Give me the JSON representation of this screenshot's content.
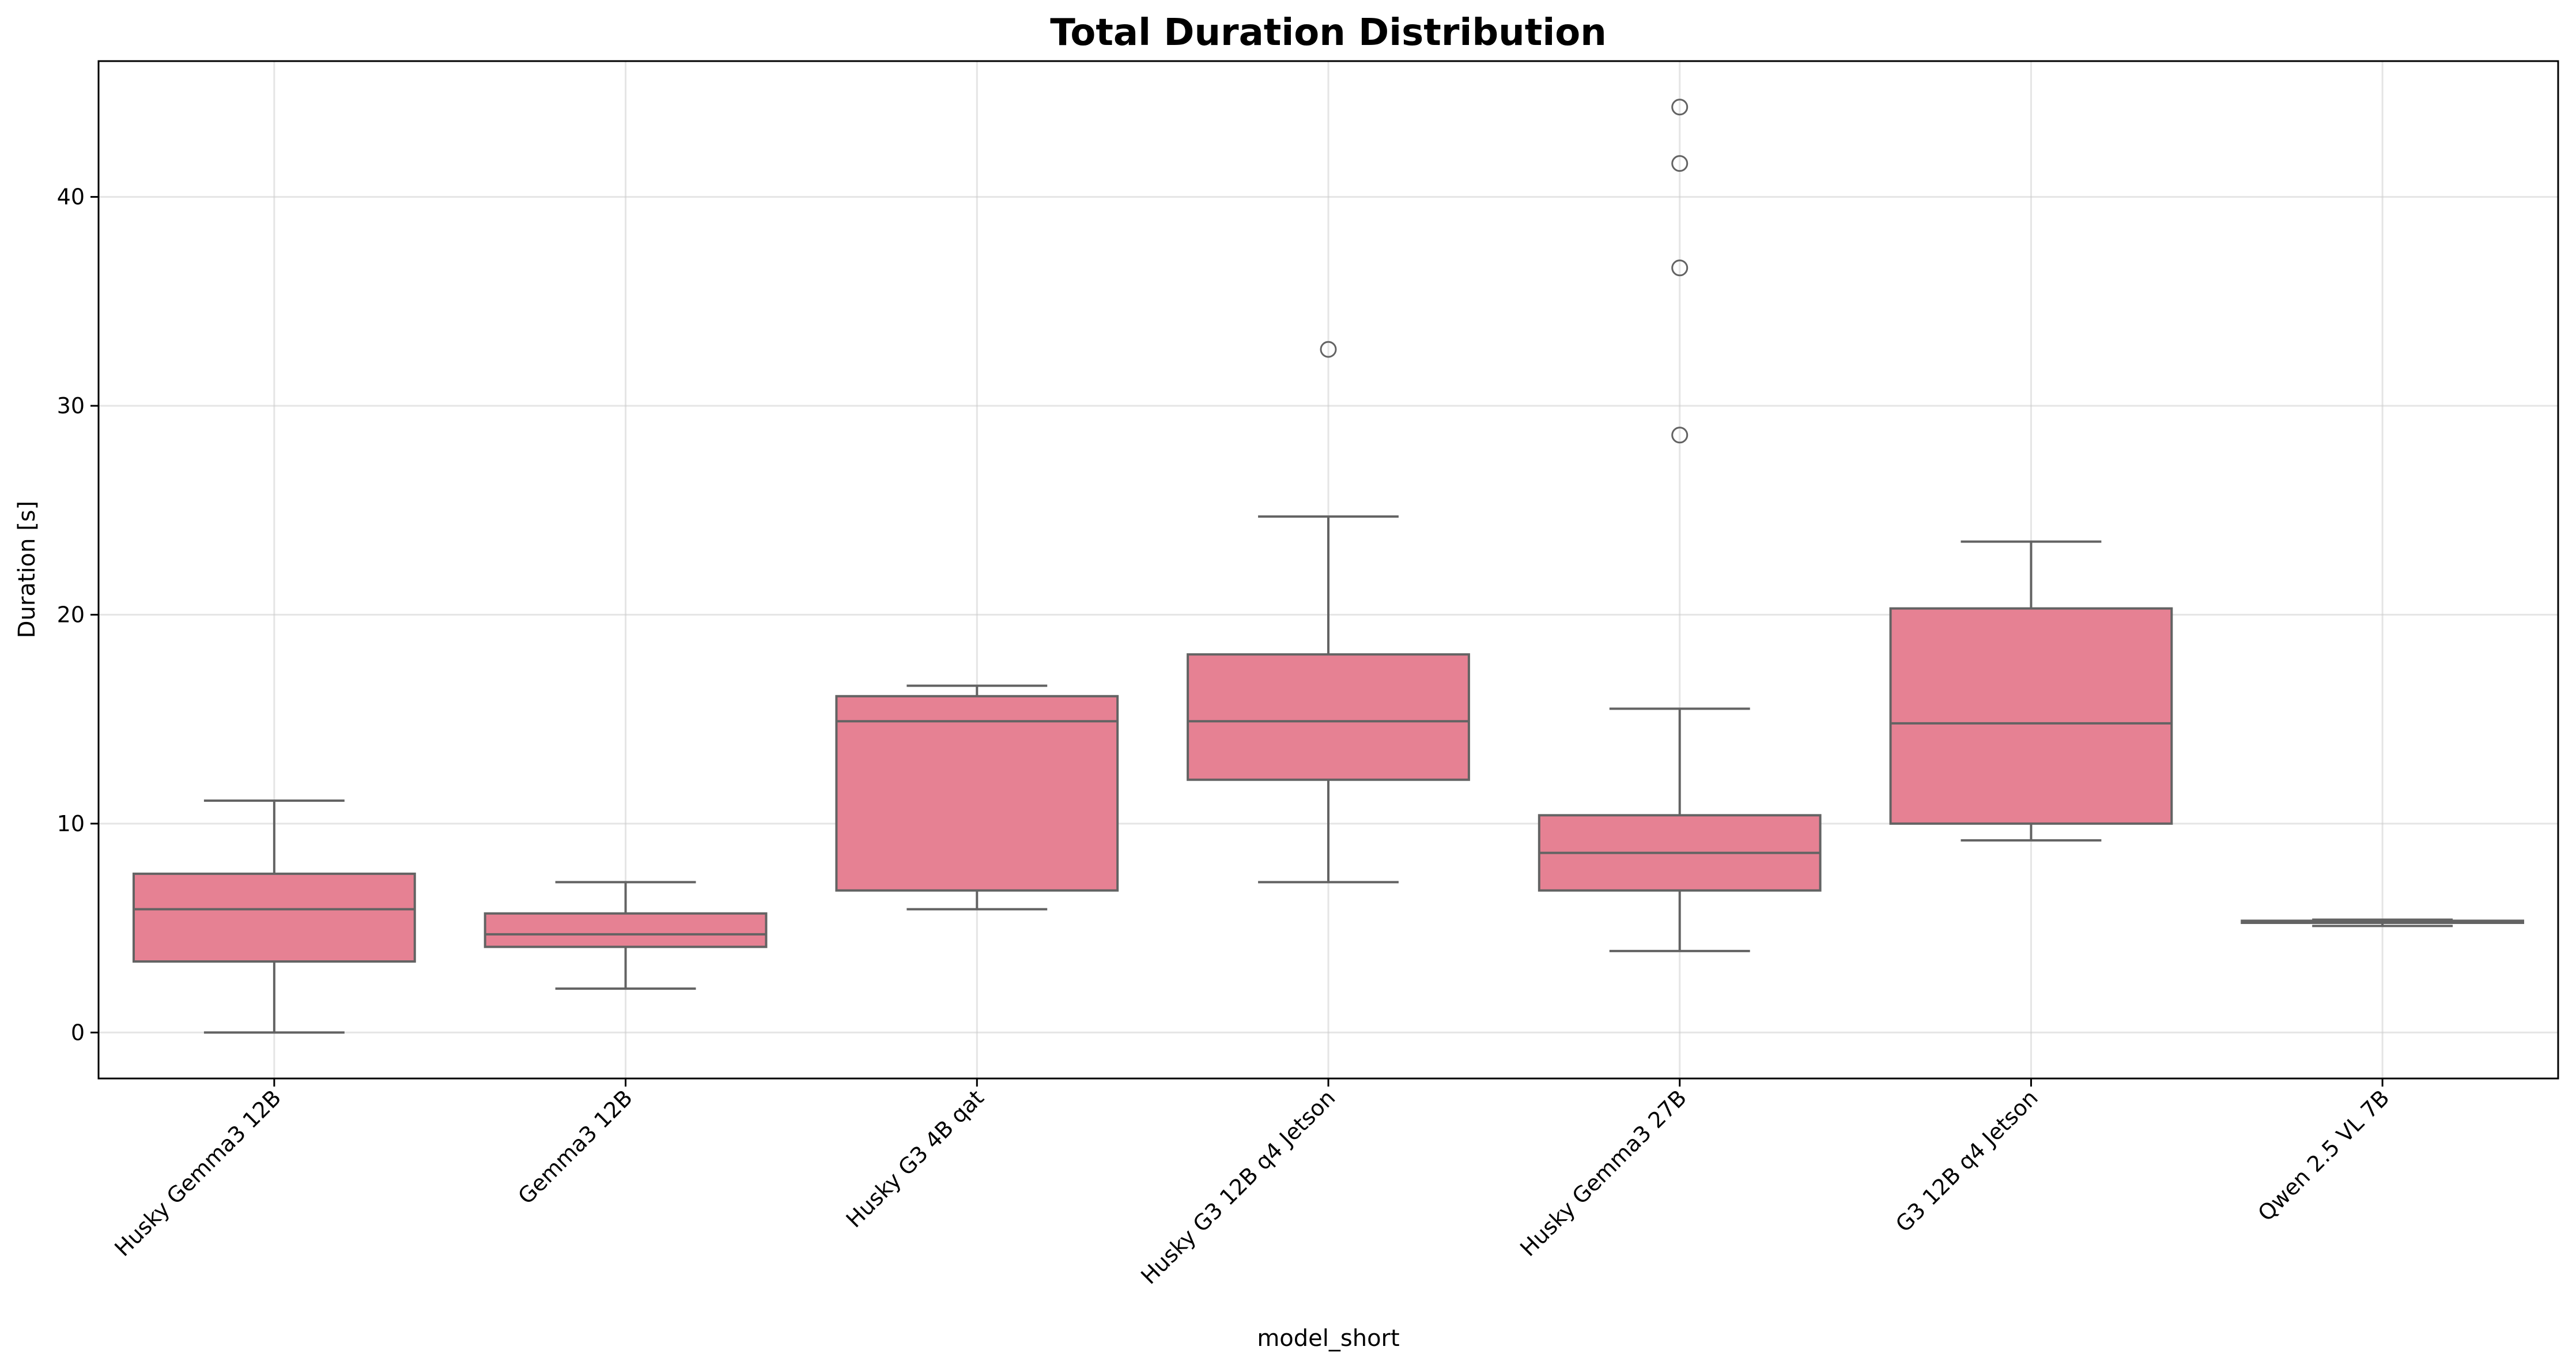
{
  "chart_data": {
    "type": "box",
    "title": "Total Duration Distribution",
    "xlabel": "model_short",
    "ylabel": "Duration [s]",
    "ylim": [
      -2.2,
      46.5
    ],
    "yticks": [
      0,
      10,
      20,
      30,
      40
    ],
    "grid": true,
    "colors": {
      "box_fill": "#e68193",
      "line": "#636363",
      "grid": "#cccccc"
    },
    "categories": [
      "Husky Gemma3 12B",
      "Gemma3 12B",
      "Husky G3 4B qat",
      "Husky G3 12B q4 Jetson",
      "Husky Gemma3 27B",
      "G3 12B q4 Jetson",
      "Qwen 2.5 VL 7B"
    ],
    "boxes": [
      {
        "name": "Husky Gemma3 12B",
        "whisker_low": 0.0,
        "q1": 3.4,
        "median": 5.9,
        "q3": 7.6,
        "whisker_high": 11.1,
        "outliers": []
      },
      {
        "name": "Gemma3 12B",
        "whisker_low": 2.1,
        "q1": 4.1,
        "median": 4.7,
        "q3": 5.7,
        "whisker_high": 7.2,
        "outliers": []
      },
      {
        "name": "Husky G3 4B qat",
        "whisker_low": 5.9,
        "q1": 6.8,
        "median": 14.9,
        "q3": 16.1,
        "whisker_high": 16.6,
        "outliers": []
      },
      {
        "name": "Husky G3 12B q4 Jetson",
        "whisker_low": 7.2,
        "q1": 12.1,
        "median": 14.9,
        "q3": 18.1,
        "whisker_high": 24.7,
        "outliers": [
          32.7
        ]
      },
      {
        "name": "Husky Gemma3 27B",
        "whisker_low": 3.9,
        "q1": 6.8,
        "median": 8.6,
        "q3": 10.4,
        "whisker_high": 15.5,
        "outliers": [
          28.6,
          36.6,
          41.6,
          44.3
        ]
      },
      {
        "name": "G3 12B q4 Jetson",
        "whisker_low": 9.2,
        "q1": 10.0,
        "median": 14.8,
        "q3": 20.3,
        "whisker_high": 23.5,
        "outliers": []
      },
      {
        "name": "Qwen 2.5 VL 7B",
        "whisker_low": 5.1,
        "q1": 5.25,
        "median": 5.3,
        "q3": 5.35,
        "whisker_high": 5.4,
        "outliers": []
      }
    ]
  }
}
